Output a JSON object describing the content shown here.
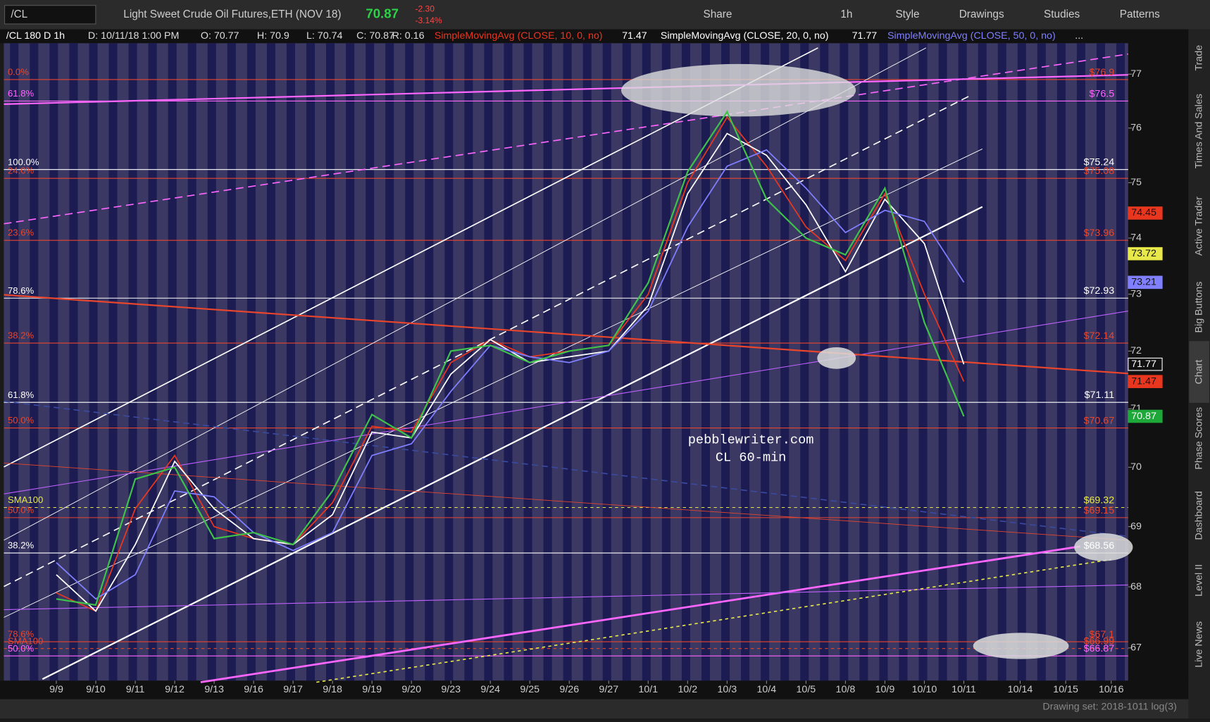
{
  "toolbar": {
    "symbol": "/CL",
    "description": "Light Sweet Crude Oil Futures,ETH (NOV 18)",
    "last": "70.87",
    "change": "-2.30",
    "change_pct": "-3.14%",
    "buttons": [
      "Share",
      "1h",
      "Style",
      "Drawings",
      "Studies",
      "Patterns"
    ]
  },
  "header": {
    "study": "/CL 180 D 1h",
    "date": "D: 10/11/18 1:00 PM",
    "open": "O: 70.77",
    "high": "H: 70.9",
    "low": "L: 70.74",
    "close": "C: 70.87",
    "range": "R: 0.16",
    "sma_values": [
      "71.47",
      "71.77"
    ],
    "more": "..."
  },
  "sidebar": [
    "Trade",
    "Times And Sales",
    "Active Trader",
    "Big Buttons",
    "Chart",
    "Phase Scores",
    "Dashboard",
    "Level II",
    "Live News"
  ],
  "footer": {
    "drawing_set": "Drawing set: 2018-1011 log(3)"
  },
  "chart_data": {
    "type": "line",
    "log_scale": true,
    "color": "#3ec24a",
    "categories": [
      "9/9",
      "9/10",
      "9/11",
      "9/12",
      "9/13",
      "9/16",
      "9/17",
      "9/18",
      "9/19",
      "9/20",
      "9/23",
      "9/24",
      "9/25",
      "9/26",
      "9/27",
      "10/1",
      "10/2",
      "10/3",
      "10/4",
      "10/5",
      "10/8",
      "10/9",
      "10/10",
      "10/11",
      "10/14",
      "10/15",
      "10/16"
    ],
    "values": [
      67.8,
      67.7,
      69.8,
      70.0,
      68.8,
      68.9,
      68.7,
      69.6,
      70.9,
      70.5,
      72.0,
      72.1,
      71.8,
      72.0,
      72.1,
      73.2,
      75.2,
      76.3,
      74.7,
      74.0,
      73.7,
      74.9,
      72.5,
      70.87,
      null,
      null,
      null
    ],
    "series": [
      {
        "name": "SimpleMovingAvg (CLOSE, 10, 0, no)",
        "color": "#e8361f",
        "values": [
          67.9,
          67.6,
          69.3,
          70.2,
          69.0,
          68.8,
          68.7,
          69.4,
          70.7,
          70.6,
          71.8,
          72.2,
          71.9,
          72.0,
          72.1,
          73.0,
          75.0,
          76.2,
          75.3,
          74.2,
          73.6,
          74.8,
          73.0,
          71.47,
          null,
          null,
          null
        ]
      },
      {
        "name": "SimpleMovingAvg (CLOSE, 20, 0, no)",
        "color": "#ffffff",
        "values": [
          68.2,
          67.6,
          68.7,
          70.1,
          69.3,
          68.8,
          68.7,
          69.2,
          70.6,
          70.5,
          71.6,
          72.2,
          71.8,
          71.9,
          72.0,
          72.8,
          74.8,
          75.9,
          75.5,
          74.6,
          73.4,
          74.7,
          73.9,
          71.77,
          null,
          null,
          null
        ]
      },
      {
        "name": "SimpleMovingAvg (CLOSE, 50, 0, no)",
        "color": "#7f7fff",
        "values": [
          68.4,
          67.8,
          68.2,
          69.6,
          69.5,
          68.9,
          68.6,
          68.9,
          70.2,
          70.4,
          71.3,
          72.1,
          71.9,
          71.8,
          72.0,
          72.7,
          74.2,
          75.3,
          75.6,
          74.9,
          74.1,
          74.5,
          74.3,
          73.21,
          null,
          null,
          null
        ]
      }
    ],
    "ylim": [
      66.47,
      77.58
    ],
    "yticks": [
      67,
      68,
      69,
      70,
      71,
      72,
      73,
      74,
      75,
      76,
      77
    ],
    "levels": [
      {
        "label": "0.0%",
        "price": {
          "value": 76.9,
          "label": "$76.9"
        },
        "color": "#e8452c"
      },
      {
        "label": "61.8%",
        "price": {
          "value": 76.5,
          "label": "$76.5"
        },
        "color": "#ff66ff"
      },
      {
        "label": "100.0%",
        "price": {
          "value": 75.24,
          "label": "$75.24"
        },
        "color": "#ffffff"
      },
      {
        "label": "24.0%",
        "price": {
          "value": 75.08,
          "label": "$75.08"
        },
        "color": "#e8452c"
      },
      {
        "label": "23.6%",
        "price": {
          "value": 73.96,
          "label": "$73.96"
        },
        "color": "#e8452c"
      },
      {
        "label": "78.6%",
        "price": {
          "value": 72.93,
          "label": "$72.93"
        },
        "color": "#ffffff"
      },
      {
        "label": "38.2%",
        "price": {
          "value": 72.14,
          "label": "$72.14"
        },
        "color": "#e8452c"
      },
      {
        "label": "61.8%",
        "price": {
          "value": 71.11,
          "label": "$71.11"
        },
        "color": "#ffffff"
      },
      {
        "label": "50.0%",
        "price": {
          "value": 70.67,
          "label": "$70.67"
        },
        "color": "#e8452c"
      },
      {
        "label": "SMA100",
        "price": {
          "value": 69.32,
          "label": "$69.32"
        },
        "color": "#e8e84a"
      },
      {
        "label": "50.0%",
        "price": {
          "value": 69.15,
          "label": "$69.15"
        },
        "color": "#e8452c"
      },
      {
        "label": "38.2%",
        "price": {
          "value": 68.56,
          "label": "$68.56"
        },
        "color": "#ffffff"
      },
      {
        "label": "78.6%",
        "price": {
          "value": 67.1,
          "label": "$67.1"
        },
        "color": "#e8452c"
      },
      {
        "label": "SMA100",
        "price": {
          "value": 66.99,
          "label": "$66.99"
        },
        "color": "#e8452c"
      },
      {
        "label": "50.0%",
        "price": {
          "value": 66.87,
          "label": "$66.87"
        },
        "color": "#ff66ff"
      }
    ],
    "tags": [
      {
        "value": 74.45,
        "color": "#e8361f"
      },
      {
        "value": 73.72,
        "color": "#e8e84a"
      },
      {
        "value": 73.21,
        "color": "#7f7fff"
      },
      {
        "value": 71.77,
        "color": "#111111"
      },
      {
        "value": 71.47,
        "color": "#e8361f"
      },
      {
        "value": 70.87,
        "color": "#1fa83a"
      }
    ],
    "watermark": [
      "pebblewriter.com",
      "CL 60-min"
    ]
  }
}
